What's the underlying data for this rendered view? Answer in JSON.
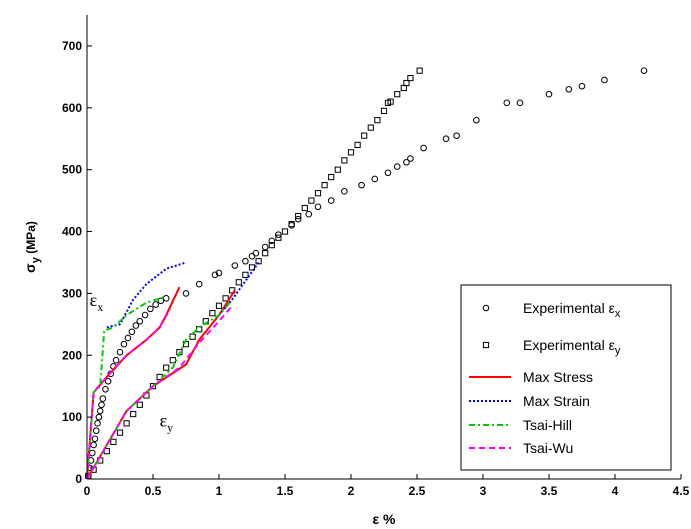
{
  "chart_data": {
    "type": "scatter",
    "xlabel": "ε %",
    "ylabel_main": "σ",
    "ylabel_sub": "y",
    "ylabel_unit": " (MPa)",
    "xlim": [
      0,
      4.5
    ],
    "ylim": [
      0,
      750
    ],
    "xticks": [
      0,
      0.5,
      1,
      1.5,
      2,
      2.5,
      3,
      3.5,
      4,
      4.5
    ],
    "xtick_labels": [
      "0",
      "0.5",
      "1",
      "1.5",
      "2",
      "2.5",
      "3",
      "3.5",
      "4",
      "4.5"
    ],
    "yticks": [
      0,
      100,
      200,
      300,
      400,
      500,
      600,
      700
    ],
    "ytick_labels": [
      "0",
      "100",
      "200",
      "300",
      "400",
      "500",
      "600",
      "700"
    ],
    "grid": false,
    "legend_position": "bottom-right",
    "annotations": [
      {
        "main": "ε",
        "sub": "x",
        "x": 0.02,
        "y": 280
      },
      {
        "main": "ε",
        "sub": "y",
        "x": 0.55,
        "y": 85
      }
    ],
    "series": [
      {
        "name": "Experimental ε",
        "name_sub": "x",
        "kind": "scatter",
        "marker": "circle",
        "color": "#000000",
        "points": [
          [
            0.01,
            5
          ],
          [
            0.02,
            18
          ],
          [
            0.03,
            30
          ],
          [
            0.04,
            42
          ],
          [
            0.05,
            55
          ],
          [
            0.06,
            65
          ],
          [
            0.07,
            78
          ],
          [
            0.08,
            90
          ],
          [
            0.09,
            100
          ],
          [
            0.1,
            110
          ],
          [
            0.11,
            120
          ],
          [
            0.12,
            130
          ],
          [
            0.14,
            145
          ],
          [
            0.16,
            158
          ],
          [
            0.18,
            170
          ],
          [
            0.2,
            182
          ],
          [
            0.22,
            192
          ],
          [
            0.25,
            205
          ],
          [
            0.28,
            218
          ],
          [
            0.31,
            228
          ],
          [
            0.34,
            238
          ],
          [
            0.37,
            248
          ],
          [
            0.4,
            255
          ],
          [
            0.44,
            265
          ],
          [
            0.48,
            275
          ],
          [
            0.52,
            282
          ],
          [
            0.56,
            288
          ],
          [
            0.6,
            292
          ],
          [
            0.75,
            300
          ],
          [
            0.85,
            315
          ],
          [
            0.97,
            330
          ],
          [
            1.0,
            333
          ],
          [
            1.12,
            345
          ],
          [
            1.2,
            352
          ],
          [
            1.25,
            360
          ],
          [
            1.28,
            365
          ],
          [
            1.35,
            375
          ],
          [
            1.4,
            385
          ],
          [
            1.45,
            395
          ],
          [
            1.55,
            410
          ],
          [
            1.6,
            420
          ],
          [
            1.68,
            428
          ],
          [
            1.75,
            440
          ],
          [
            1.85,
            450
          ],
          [
            1.95,
            465
          ],
          [
            2.08,
            475
          ],
          [
            2.18,
            485
          ],
          [
            2.28,
            495
          ],
          [
            2.35,
            505
          ],
          [
            2.42,
            512
          ],
          [
            2.45,
            518
          ],
          [
            2.55,
            535
          ],
          [
            2.72,
            550
          ],
          [
            2.8,
            555
          ],
          [
            2.95,
            580
          ],
          [
            3.18,
            608
          ],
          [
            3.28,
            608
          ],
          [
            3.5,
            622
          ],
          [
            3.65,
            630
          ],
          [
            3.75,
            635
          ],
          [
            3.92,
            645
          ],
          [
            4.22,
            660
          ]
        ]
      },
      {
        "name": "Experimental ε",
        "name_sub": "y",
        "kind": "scatter",
        "marker": "square",
        "color": "#000000",
        "points": [
          [
            0.01,
            5
          ],
          [
            0.05,
            15
          ],
          [
            0.1,
            30
          ],
          [
            0.15,
            45
          ],
          [
            0.2,
            60
          ],
          [
            0.25,
            75
          ],
          [
            0.3,
            90
          ],
          [
            0.35,
            105
          ],
          [
            0.4,
            120
          ],
          [
            0.45,
            135
          ],
          [
            0.5,
            150
          ],
          [
            0.55,
            165
          ],
          [
            0.6,
            180
          ],
          [
            0.65,
            192
          ],
          [
            0.7,
            205
          ],
          [
            0.75,
            218
          ],
          [
            0.8,
            230
          ],
          [
            0.85,
            242
          ],
          [
            0.9,
            255
          ],
          [
            0.95,
            268
          ],
          [
            1.0,
            280
          ],
          [
            1.05,
            292
          ],
          [
            1.1,
            305
          ],
          [
            1.15,
            318
          ],
          [
            1.2,
            330
          ],
          [
            1.25,
            342
          ],
          [
            1.3,
            352
          ],
          [
            1.35,
            365
          ],
          [
            1.4,
            378
          ],
          [
            1.45,
            390
          ],
          [
            1.5,
            400
          ],
          [
            1.55,
            412
          ],
          [
            1.6,
            425
          ],
          [
            1.65,
            438
          ],
          [
            1.7,
            450
          ],
          [
            1.75,
            462
          ],
          [
            1.8,
            475
          ],
          [
            1.85,
            488
          ],
          [
            1.9,
            500
          ],
          [
            1.95,
            515
          ],
          [
            2.0,
            528
          ],
          [
            2.05,
            540
          ],
          [
            2.1,
            555
          ],
          [
            2.15,
            568
          ],
          [
            2.2,
            580
          ],
          [
            2.25,
            595
          ],
          [
            2.28,
            608
          ],
          [
            2.3,
            610
          ],
          [
            2.35,
            622
          ],
          [
            2.4,
            632
          ],
          [
            2.42,
            640
          ],
          [
            2.45,
            648
          ],
          [
            2.52,
            660
          ]
        ]
      },
      {
        "name": "Max Stress",
        "kind": "line",
        "dash": "solid",
        "color": "#ff0000",
        "segments": [
          [
            [
              0,
              0
            ],
            [
              0.05,
              140
            ],
            [
              0.15,
              165
            ],
            [
              0.3,
              200
            ],
            [
              0.45,
              225
            ],
            [
              0.55,
              245
            ],
            [
              0.6,
              265
            ],
            [
              0.7,
              310
            ]
          ],
          [
            [
              0,
              0
            ],
            [
              0.3,
              110
            ],
            [
              0.5,
              150
            ],
            [
              0.75,
              185
            ],
            [
              0.85,
              225
            ],
            [
              1.0,
              265
            ],
            [
              1.12,
              305
            ]
          ]
        ]
      },
      {
        "name": "Max Strain",
        "kind": "line",
        "dash": "dotted",
        "color": "#0000ff",
        "segments": [
          [
            [
              0.15,
              245
            ],
            [
              0.25,
              250
            ],
            [
              0.35,
              290
            ],
            [
              0.45,
              315
            ],
            [
              0.6,
              340
            ],
            [
              0.75,
              350
            ]
          ],
          [
            [
              1.0,
              265
            ],
            [
              1.1,
              290
            ],
            [
              1.25,
              335
            ],
            [
              1.3,
              350
            ]
          ]
        ]
      },
      {
        "name": "Tsai-Hill",
        "kind": "line",
        "dash": "dashdot",
        "color": "#00cc00",
        "segments": [
          [
            [
              0,
              0
            ],
            [
              0.05,
              140
            ],
            [
              0.1,
              150
            ],
            [
              0.13,
              240
            ],
            [
              0.2,
              245
            ],
            [
              0.3,
              265
            ],
            [
              0.45,
              285
            ],
            [
              0.6,
              295
            ]
          ],
          [
            [
              0,
              0
            ],
            [
              0.3,
              110
            ],
            [
              0.5,
              150
            ],
            [
              0.65,
              180
            ],
            [
              0.75,
              225
            ],
            [
              0.85,
              245
            ],
            [
              1.0,
              265
            ],
            [
              1.08,
              285
            ]
          ]
        ]
      },
      {
        "name": "Tsai-Wu",
        "kind": "line",
        "dash": "dashed",
        "color": "#ff00ff",
        "segments": [
          [
            [
              0,
              0
            ],
            [
              0.05,
              140
            ],
            [
              0.15,
              165
            ],
            [
              0.3,
              200
            ],
            [
              0.45,
              225
            ],
            [
              0.55,
              245
            ],
            [
              0.63,
              275
            ]
          ],
          [
            [
              0,
              0
            ],
            [
              0.3,
              110
            ],
            [
              0.5,
              150
            ],
            [
              0.7,
              180
            ],
            [
              0.85,
              220
            ],
            [
              1.0,
              255
            ],
            [
              1.1,
              280
            ]
          ]
        ]
      }
    ]
  }
}
